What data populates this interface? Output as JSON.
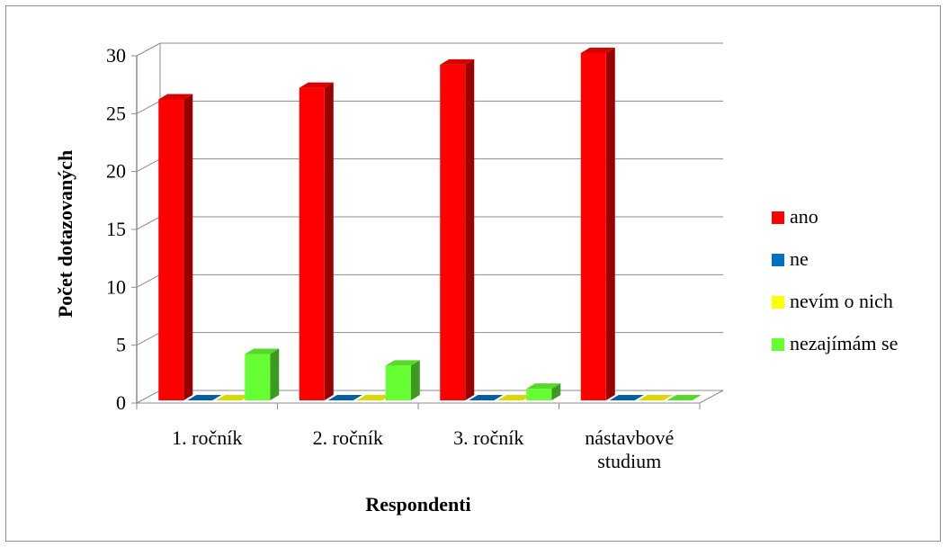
{
  "chart_data": {
    "type": "bar",
    "categories": [
      [
        "1. ročník"
      ],
      [
        "2. ročník"
      ],
      [
        "3. ročník"
      ],
      [
        "nástavbové",
        "studium"
      ]
    ],
    "series": [
      {
        "name": "ano",
        "values": [
          26,
          27,
          29,
          30
        ],
        "color": "#ff0000"
      },
      {
        "name": "ne",
        "values": [
          0,
          0,
          0,
          0
        ],
        "color": "#0070c0"
      },
      {
        "name": "nevím o nich",
        "values": [
          0,
          0,
          0,
          0
        ],
        "color": "#ffff00"
      },
      {
        "name": "nezajímám se",
        "values": [
          4,
          3,
          1,
          0
        ],
        "color": "#66ff33"
      }
    ],
    "xlabel": "Respondenti",
    "ylabel": "Počet dotazovaných",
    "ylim": [
      0,
      30
    ],
    "yticks": [
      0,
      5,
      10,
      15,
      20,
      25,
      30
    ],
    "grid": true,
    "legend": "right",
    "three_d": true
  }
}
